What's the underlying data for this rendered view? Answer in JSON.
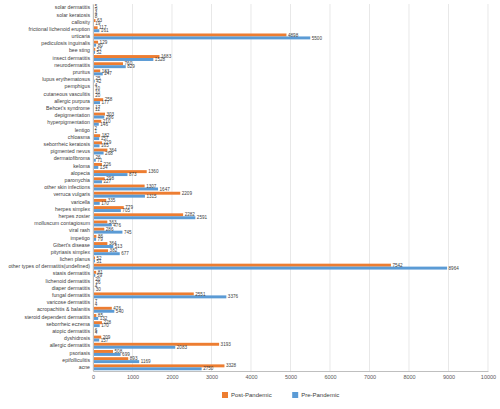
{
  "chart_data": {
    "type": "bar",
    "orientation": "horizontal",
    "grid": true,
    "data_labels": true,
    "legend": "bottom",
    "categories": [
      "solar dermatitis",
      "solar keratosis",
      "callosity",
      "frictional lichenoid eruption",
      "urticaria",
      "pediculosis inguinalis",
      "bee sting",
      "insect dermatitis",
      "neurodermatitis",
      "pruritus",
      "lupus erythematosus",
      "pemphigus",
      "cutaneous vasculitis",
      "allergic purpura",
      "Behcet's syndrome",
      "depigmentation",
      "hyperpigmentation",
      "lentigo",
      "chloasma",
      "seborrheic keratosis",
      "pigmented nevus",
      "dermatofibroma",
      "keloma",
      "alopecia",
      "paronychia",
      "other skin infections",
      "verruca vulgaris",
      "varicella",
      "herpes simplex",
      "herpes zoster",
      "molluscum contagiosum",
      "viral rash",
      "impetigo",
      "Gibert's disease",
      "pityriasis simplex",
      "lichen planus",
      "other types of dermatitis(undefined)",
      "stasis dermatitis",
      "lichenoid dermatitis",
      "diaper dermatitis",
      "fungal dermatitis",
      "varicose dermatitis",
      "acropachitis & balanitis",
      "steroid dependent dermatitis",
      "seborrheic eczema",
      "atopic dermatitis",
      "dyshidrosis",
      "allergic dermatitis",
      "psoriasis",
      "epifolliculitis",
      "acne"
    ],
    "series": [
      {
        "name": "Post-Pandemic",
        "color": "#ed7d31",
        "values": [
          5,
          4,
          63,
          117,
          4898,
          129,
          57,
          1683,
          760,
          183,
          25,
          4,
          10,
          258,
          17,
          303,
          210,
          2,
          182,
          229,
          364,
          26,
          226,
          1360,
          298,
          1307,
          2209,
          335,
          779,
          2282,
          363,
          286,
          86,
          364,
          382,
          52,
          7542,
          81,
          20,
          4,
          2551,
          7,
          476,
          85,
          228,
          6,
          209,
          3193,
          508,
          893,
          3328
        ]
      },
      {
        "name": "Pre-Pandemic",
        "color": "#5b9bd5",
        "values": [
          9,
          8,
          19,
          161,
          5500,
          80,
          52,
          1528,
          829,
          247,
          42,
          10,
          20,
          177,
          12,
          286,
          146,
          1,
          157,
          165,
          268,
          71,
          134,
          873,
          227,
          1647,
          1315,
          170,
          705,
          2591,
          476,
          745,
          79,
          513,
          677,
          51,
          8964,
          59,
          26,
          30,
          3376,
          4,
          540,
          132,
          170,
          4,
          157,
          2083,
          699,
          1169,
          2750
        ]
      }
    ],
    "xlim": [
      0,
      10000
    ],
    "xticks": [
      0,
      1000,
      2000,
      3000,
      4000,
      5000,
      6000,
      7000,
      8000,
      9000,
      10000
    ]
  }
}
